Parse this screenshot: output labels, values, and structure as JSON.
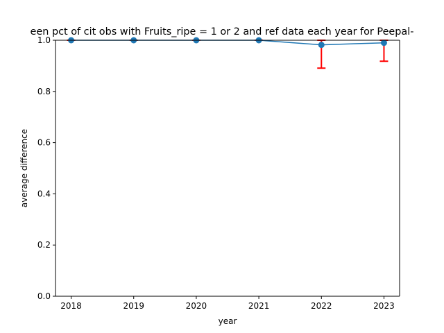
{
  "chart_data": {
    "type": "line",
    "title": "een pct of cit obs with Fruits_ripe = 1 or 2 and ref data each year for Peepal-",
    "xlabel": "year",
    "ylabel": "average difference",
    "x": [
      2018,
      2019,
      2020,
      2021,
      2022,
      2023
    ],
    "x_tick_labels": [
      "2018",
      "2019",
      "2020",
      "2021",
      "2022",
      "2023"
    ],
    "y_ticks": [
      0.0,
      0.2,
      0.4,
      0.6,
      0.8,
      1.0
    ],
    "y_tick_labels": [
      "0.0",
      "0.2",
      "0.4",
      "0.6",
      "0.8",
      "1.0"
    ],
    "xlim": [
      2017.75,
      2023.25
    ],
    "ylim": [
      0.0,
      1.0
    ],
    "grid": false,
    "series": [
      {
        "values": [
          1.0,
          1.0,
          1.0,
          1.0,
          0.982,
          0.99
        ],
        "error_low": [
          1.0,
          1.0,
          1.0,
          1.0,
          0.891,
          0.918
        ],
        "error_high": [
          1.0,
          1.0,
          1.0,
          1.0,
          1.0,
          1.0
        ],
        "line_color": "#1f77b4",
        "marker_color": "#1f77b4",
        "error_color": "#ff0000"
      }
    ]
  }
}
